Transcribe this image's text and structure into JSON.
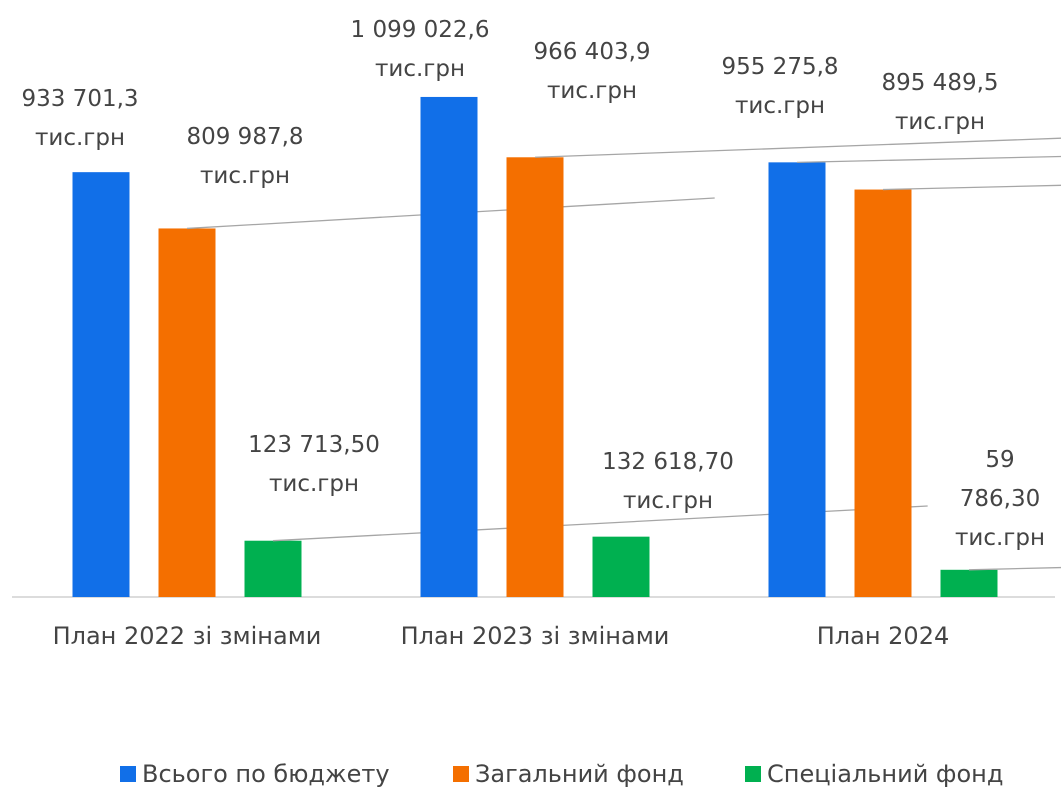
{
  "chart_data": {
    "type": "bar",
    "categories": [
      "План 2022 зі змінами",
      "План 2023 зі змінами",
      "План 2024"
    ],
    "series": [
      {
        "name": "Всього по бюджету",
        "color": "#116fe8",
        "values": [
          933701.3,
          1099022.6,
          955275.8
        ],
        "value_labels": [
          "933 701,3\nтис.грн",
          "1 099 022,6\nтис.грн",
          "955 275,8\nтис.грн"
        ]
      },
      {
        "name": "Загальний фонд",
        "color": "#f46f00",
        "values": [
          809987.8,
          966403.9,
          895489.5
        ],
        "value_labels": [
          "809 987,8\nтис.грн",
          "966 403,9\nтис.грн",
          "895 489,5\nтис.грн"
        ]
      },
      {
        "name": "Спеціальний фонд",
        "color": "#00b050",
        "values": [
          123713.5,
          132618.7,
          59786.3
        ],
        "value_labels": [
          "123 713,50\nтис.грн",
          "132 618,70\nтис.грн",
          "59 786,30\nтис.грн"
        ]
      }
    ],
    "ylim": [
      0,
      1200000
    ]
  }
}
